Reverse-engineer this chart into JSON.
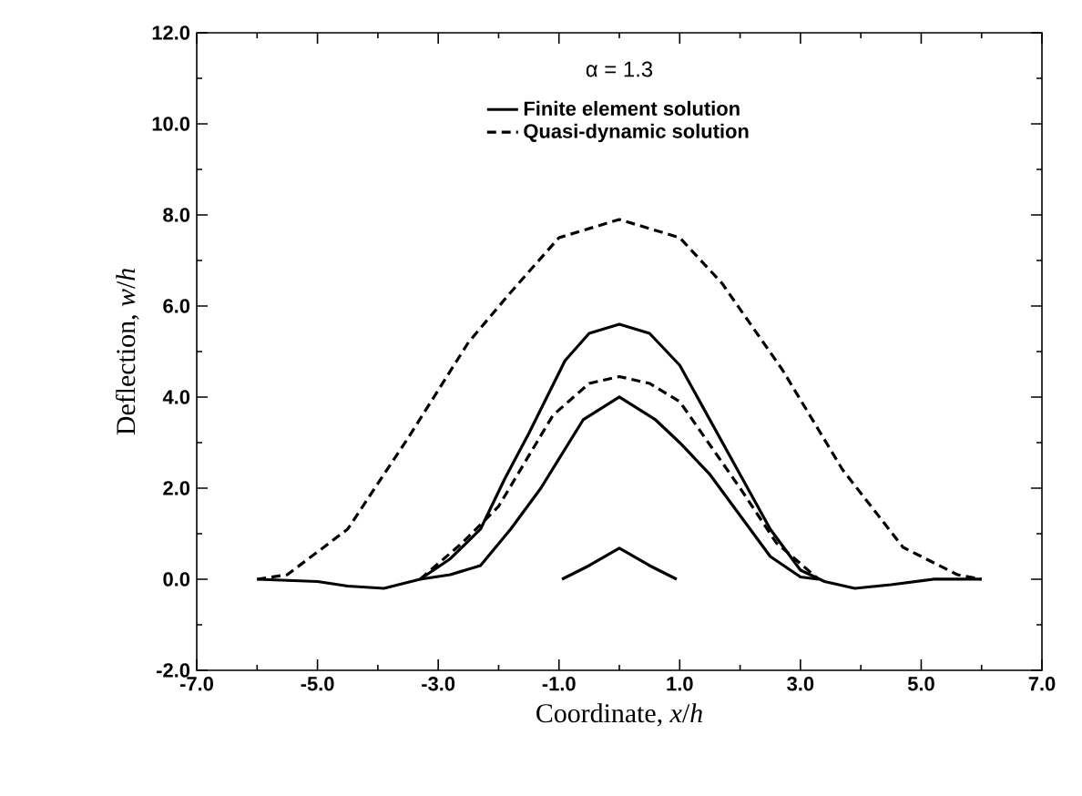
{
  "chart_data": {
    "type": "line",
    "legend_title": "α = 1.3",
    "xlabel": "Coordinate, *x*/*h*",
    "ylabel": "Deflection, *w*/*h*",
    "xlim": [
      -7,
      7
    ],
    "ylim": [
      -2,
      12
    ],
    "xticks": [
      {
        "value": -7,
        "label": "-7.0"
      },
      {
        "value": -5,
        "label": "-5.0"
      },
      {
        "value": -3,
        "label": "-3.0"
      },
      {
        "value": -1,
        "label": "-1.0"
      },
      {
        "value": 1,
        "label": "1.0"
      },
      {
        "value": 3,
        "label": "3.0"
      },
      {
        "value": 5,
        "label": "5.0"
      },
      {
        "value": 7,
        "label": "7.0"
      }
    ],
    "yticks": [
      {
        "value": -2,
        "label": "-2.0"
      },
      {
        "value": 0,
        "label": "0.0"
      },
      {
        "value": 2,
        "label": "2.0"
      },
      {
        "value": 4,
        "label": "4.0"
      },
      {
        "value": 6,
        "label": "6.0"
      },
      {
        "value": 8,
        "label": "8.0"
      },
      {
        "value": 10,
        "label": "10.0"
      },
      {
        "value": 12,
        "label": "12.0"
      }
    ],
    "legend": "top",
    "grid": false,
    "marker": "none",
    "series": [
      {
        "name": "Finite element solution",
        "color": "#000000",
        "line_style": "solid",
        "x": [
          -6.0,
          -5.0,
          -4.5,
          -3.9,
          -3.3,
          -2.8,
          -2.3,
          -1.9,
          -1.5,
          -0.9,
          -0.5,
          0,
          0.5,
          1.0,
          1.5,
          2.0,
          2.5,
          3.0,
          3.4,
          3.9,
          4.5,
          5.2,
          6.0
        ],
        "values": [
          0,
          -0.05,
          -0.15,
          -0.2,
          0,
          0.45,
          1.1,
          2.2,
          3.2,
          4.8,
          5.4,
          5.6,
          5.4,
          4.7,
          3.5,
          2.3,
          1.1,
          0.2,
          -0.05,
          -0.2,
          -0.12,
          0,
          0
        ]
      },
      {
        "color": "#000000",
        "line_style": "solid",
        "x": [
          -3.3,
          -2.8,
          -2.3,
          -1.8,
          -1.3,
          -0.6,
          0,
          0.6,
          1.0,
          1.5,
          2.0,
          2.5,
          3.0,
          3.3
        ],
        "values": [
          0,
          0.1,
          0.3,
          1.1,
          2.0,
          3.5,
          4.0,
          3.5,
          3.0,
          2.3,
          1.4,
          0.5,
          0.05,
          0
        ]
      },
      {
        "color": "#000000",
        "line_style": "solid",
        "x": [
          -0.95,
          -0.5,
          0,
          0.5,
          0.95
        ],
        "values": [
          0,
          0.3,
          0.68,
          0.3,
          0
        ]
      },
      {
        "name": "Quasi-dynamic solution",
        "color": "#000000",
        "line_style": "dashed",
        "x": [
          -6.0,
          -5.5,
          -4.5,
          -3.5,
          -2.5,
          -1.8,
          -1.0,
          0,
          1.0,
          1.7,
          2.7,
          3.7,
          4.7,
          5.6,
          6.0
        ],
        "values": [
          0,
          0.1,
          1.1,
          3.1,
          5.2,
          6.3,
          7.5,
          7.9,
          7.5,
          6.5,
          4.6,
          2.4,
          0.7,
          0.1,
          0
        ]
      },
      {
        "color": "#000000",
        "line_style": "dashed",
        "x": [
          -3.3,
          -2.6,
          -2.0,
          -1.1,
          -0.5,
          0,
          0.5,
          1.0,
          2.0,
          2.6,
          3.3
        ],
        "values": [
          0,
          0.8,
          1.6,
          3.6,
          4.3,
          4.45,
          4.3,
          3.9,
          2.0,
          0.8,
          0
        ]
      }
    ]
  }
}
